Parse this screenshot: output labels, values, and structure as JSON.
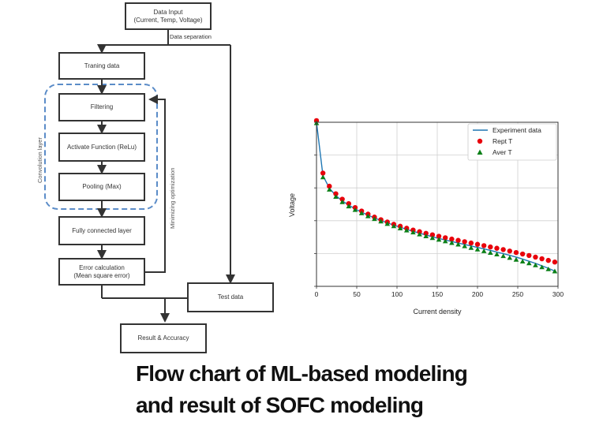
{
  "flowchart": {
    "data_input": "Data Input\n(Current, Temp, Voltage)",
    "data_separation": "Data separation",
    "training_data": "Traning data",
    "filtering": "Filtering",
    "activate_function": "Activate Function (ReLu)",
    "pooling": "Pooling (Max)",
    "convolution_layer": "Convolution layer",
    "fully_connected": "Fully connected layer",
    "error_calculation": "Error calculation\n(Mean square error)",
    "minimizing_optimization": "Minimizing optimization",
    "test_data": "Test data",
    "result_accuracy": "Result & Accuracy"
  },
  "chart_data": {
    "type": "scatter",
    "xlabel": "Current density",
    "ylabel": "Voltage",
    "xlim": [
      0,
      300
    ],
    "ylim": [
      0,
      1
    ],
    "x_ticks": [
      "0",
      "50",
      "100",
      "150",
      "200",
      "250",
      "300"
    ],
    "grid": true,
    "legend_position": "top-right",
    "series": [
      {
        "name": "Experiment data",
        "kind": "line",
        "color": "#1f77b4",
        "x": [
          0,
          8,
          16,
          24,
          32,
          40,
          48,
          56,
          64,
          72,
          80,
          88,
          96,
          104,
          112,
          120,
          128,
          136,
          144,
          152,
          160,
          168,
          176,
          184,
          192,
          200,
          208,
          216,
          224,
          232,
          240,
          248,
          256,
          264,
          272,
          280,
          288,
          296
        ],
        "y": [
          1.0,
          0.675,
          0.598,
          0.553,
          0.521,
          0.495,
          0.472,
          0.452,
          0.434,
          0.417,
          0.401,
          0.387,
          0.373,
          0.36,
          0.347,
          0.335,
          0.324,
          0.313,
          0.302,
          0.292,
          0.282,
          0.273,
          0.264,
          0.255,
          0.246,
          0.237,
          0.228,
          0.219,
          0.209,
          0.199,
          0.189,
          0.178,
          0.166,
          0.153,
          0.14,
          0.125,
          0.11,
          0.093
        ]
      },
      {
        "name": "Rept T",
        "kind": "circle",
        "color": "#e8000b",
        "x": [
          0,
          8,
          16,
          24,
          32,
          40,
          48,
          56,
          64,
          72,
          80,
          88,
          96,
          104,
          112,
          120,
          128,
          136,
          144,
          152,
          160,
          168,
          176,
          184,
          192,
          200,
          208,
          216,
          224,
          232,
          240,
          248,
          256,
          264,
          272,
          280,
          288,
          296
        ],
        "y": [
          1.01,
          0.69,
          0.61,
          0.564,
          0.531,
          0.504,
          0.48,
          0.459,
          0.44,
          0.422,
          0.406,
          0.392,
          0.378,
          0.366,
          0.354,
          0.343,
          0.333,
          0.323,
          0.314,
          0.305,
          0.296,
          0.288,
          0.28,
          0.272,
          0.264,
          0.256,
          0.248,
          0.24,
          0.232,
          0.224,
          0.215,
          0.206,
          0.197,
          0.188,
          0.178,
          0.168,
          0.158,
          0.148
        ]
      },
      {
        "name": "Aver T",
        "kind": "triangle",
        "color": "#0a7f17",
        "x": [
          0,
          8,
          16,
          24,
          32,
          40,
          48,
          56,
          64,
          72,
          80,
          88,
          96,
          104,
          112,
          120,
          128,
          136,
          144,
          152,
          160,
          168,
          176,
          184,
          192,
          200,
          208,
          216,
          224,
          232,
          240,
          248,
          256,
          264,
          272,
          280,
          288,
          296
        ],
        "y": [
          0.995,
          0.665,
          0.59,
          0.546,
          0.514,
          0.488,
          0.466,
          0.446,
          0.428,
          0.411,
          0.396,
          0.381,
          0.367,
          0.354,
          0.341,
          0.329,
          0.317,
          0.306,
          0.295,
          0.285,
          0.275,
          0.265,
          0.255,
          0.245,
          0.235,
          0.225,
          0.215,
          0.205,
          0.195,
          0.185,
          0.174,
          0.163,
          0.152,
          0.141,
          0.129,
          0.117,
          0.105,
          0.092
        ]
      }
    ]
  },
  "caption": {
    "line1": "Flow chart of ML-based modeling",
    "line2": "and result of SOFC modeling"
  }
}
